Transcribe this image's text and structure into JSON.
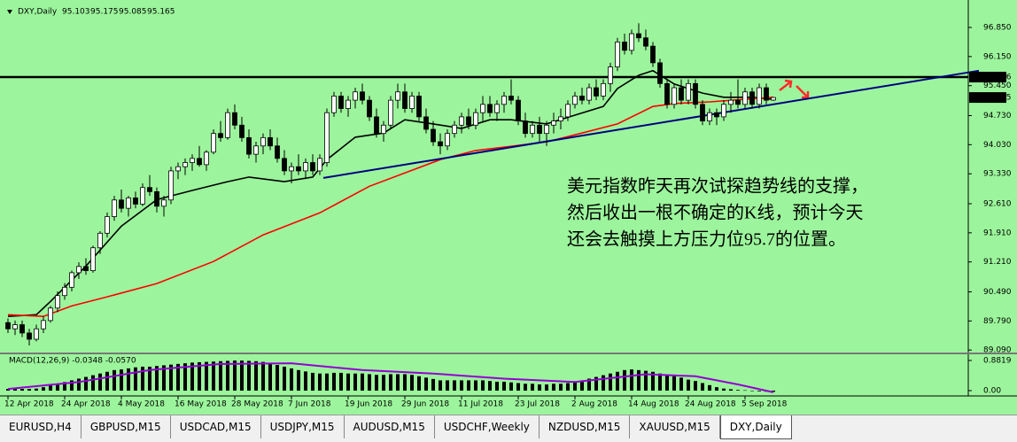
{
  "chart_data": {
    "type": "candlestick",
    "title": "DXY,Daily",
    "xlim": [
      -0.5,
      135.5
    ],
    "ylim": [
      89.03,
      97.34
    ],
    "yticks": [
      {
        "value": 96.85,
        "label": "96.850"
      },
      {
        "value": 96.15,
        "label": "96.150"
      },
      {
        "value": 95.45,
        "label": "95.450"
      },
      {
        "value": 94.73,
        "label": "94.730"
      },
      {
        "value": 94.03,
        "label": "94.030"
      },
      {
        "value": 93.33,
        "label": "93.330"
      },
      {
        "value": 92.61,
        "label": "92.610"
      },
      {
        "value": 91.91,
        "label": "91.910"
      },
      {
        "value": 91.21,
        "label": "91.210"
      },
      {
        "value": 90.49,
        "label": "90.490"
      },
      {
        "value": 89.79,
        "label": "89.790"
      },
      {
        "value": 89.09,
        "label": "89.090"
      }
    ],
    "categories": [
      "12 Apr 2018",
      null,
      null,
      null,
      null,
      null,
      null,
      null,
      "24 Apr 2018",
      null,
      null,
      null,
      null,
      null,
      null,
      null,
      "4 May 2018",
      null,
      null,
      null,
      null,
      null,
      null,
      null,
      "16 May 2018",
      null,
      null,
      null,
      null,
      null,
      null,
      null,
      "28 May 2018",
      null,
      null,
      null,
      null,
      null,
      null,
      null,
      "7 Jun 2018",
      null,
      null,
      null,
      null,
      null,
      null,
      null,
      "19 Jun 2018",
      null,
      null,
      null,
      null,
      null,
      null,
      null,
      "29 Jun 2018",
      null,
      null,
      null,
      null,
      null,
      null,
      null,
      "11 Jul 2018",
      null,
      null,
      null,
      null,
      null,
      null,
      null,
      "23 Jul 2018",
      null,
      null,
      null,
      null,
      null,
      null,
      null,
      "2 Aug 2018",
      null,
      null,
      null,
      null,
      null,
      null,
      null,
      "14 Aug 2018",
      null,
      null,
      null,
      null,
      null,
      null,
      null,
      "24 Aug 2018",
      null,
      null,
      null,
      null,
      null,
      null,
      null,
      "5 Sep 2018",
      null,
      null,
      null,
      null
    ],
    "up_color": "#ffffff",
    "down_color": "#000000",
    "candles": [
      [
        89.75,
        89.85,
        89.5,
        89.6
      ],
      [
        89.6,
        89.8,
        89.45,
        89.7
      ],
      [
        89.7,
        89.8,
        89.4,
        89.5
      ],
      [
        89.5,
        89.6,
        89.2,
        89.35
      ],
      [
        89.35,
        89.7,
        89.3,
        89.6
      ],
      [
        89.6,
        89.9,
        89.5,
        89.8
      ],
      [
        89.8,
        90.15,
        89.75,
        90.1
      ],
      [
        90.1,
        90.5,
        90.0,
        90.4
      ],
      [
        90.4,
        90.7,
        90.3,
        90.6
      ],
      [
        90.6,
        91.0,
        90.5,
        90.95
      ],
      [
        90.95,
        91.2,
        90.8,
        91.1
      ],
      [
        91.1,
        91.3,
        90.9,
        91.0
      ],
      [
        91.0,
        91.6,
        90.95,
        91.55
      ],
      [
        91.55,
        91.95,
        91.4,
        91.9
      ],
      [
        91.9,
        92.4,
        91.8,
        92.3
      ],
      [
        92.3,
        92.8,
        92.2,
        92.7
      ],
      [
        92.7,
        92.95,
        92.4,
        92.5
      ],
      [
        92.5,
        92.8,
        92.3,
        92.75
      ],
      [
        92.75,
        92.9,
        92.5,
        92.6
      ],
      [
        92.6,
        93.1,
        92.55,
        93.0
      ],
      [
        93.0,
        93.3,
        92.8,
        92.9
      ],
      [
        92.9,
        93.0,
        92.4,
        92.55
      ],
      [
        92.55,
        92.8,
        92.3,
        92.7
      ],
      [
        92.7,
        93.5,
        92.6,
        93.4
      ],
      [
        93.4,
        93.6,
        93.2,
        93.5
      ],
      [
        93.5,
        93.7,
        93.3,
        93.6
      ],
      [
        93.6,
        93.8,
        93.4,
        93.7
      ],
      [
        93.7,
        94.0,
        93.5,
        93.55
      ],
      [
        93.55,
        93.9,
        93.4,
        93.85
      ],
      [
        93.85,
        94.4,
        93.8,
        94.3
      ],
      [
        94.3,
        94.6,
        94.1,
        94.2
      ],
      [
        94.2,
        94.9,
        94.15,
        94.8
      ],
      [
        94.8,
        95.0,
        94.4,
        94.5
      ],
      [
        94.5,
        94.7,
        94.1,
        94.2
      ],
      [
        94.2,
        94.4,
        93.7,
        93.8
      ],
      [
        93.8,
        94.1,
        93.6,
        94.0
      ],
      [
        94.0,
        94.3,
        93.8,
        94.2
      ],
      [
        94.2,
        94.4,
        93.9,
        94.0
      ],
      [
        94.0,
        94.2,
        93.6,
        93.7
      ],
      [
        93.7,
        93.9,
        93.3,
        93.4
      ],
      [
        93.4,
        93.6,
        93.1,
        93.5
      ],
      [
        93.5,
        93.8,
        93.3,
        93.4
      ],
      [
        93.4,
        93.7,
        93.2,
        93.6
      ],
      [
        93.6,
        93.8,
        93.3,
        93.4
      ],
      [
        93.4,
        93.8,
        93.3,
        93.7
      ],
      [
        93.6,
        94.9,
        93.5,
        94.8
      ],
      [
        94.8,
        95.3,
        94.7,
        95.2
      ],
      [
        95.2,
        95.3,
        94.8,
        94.9
      ],
      [
        94.9,
        95.2,
        94.7,
        95.1
      ],
      [
        95.1,
        95.4,
        94.9,
        95.3
      ],
      [
        95.3,
        95.5,
        95.0,
        95.1
      ],
      [
        95.1,
        95.2,
        94.6,
        94.7
      ],
      [
        94.7,
        94.9,
        94.2,
        94.3
      ],
      [
        94.3,
        94.6,
        94.1,
        94.5
      ],
      [
        94.5,
        95.2,
        94.4,
        95.1
      ],
      [
        95.1,
        95.5,
        94.9,
        95.3
      ],
      [
        95.3,
        95.5,
        94.8,
        94.9
      ],
      [
        94.9,
        95.3,
        94.8,
        95.2
      ],
      [
        95.2,
        95.3,
        94.6,
        94.7
      ],
      [
        94.7,
        94.9,
        94.3,
        94.4
      ],
      [
        94.4,
        94.6,
        94.0,
        94.1
      ],
      [
        94.1,
        94.3,
        93.8,
        94.0
      ],
      [
        94.0,
        94.4,
        93.9,
        94.3
      ],
      [
        94.3,
        94.6,
        94.2,
        94.5
      ],
      [
        94.5,
        94.8,
        94.3,
        94.7
      ],
      [
        94.7,
        94.9,
        94.4,
        94.5
      ],
      [
        94.5,
        94.9,
        94.4,
        94.8
      ],
      [
        94.8,
        95.2,
        94.6,
        95.0
      ],
      [
        95.0,
        95.2,
        94.7,
        94.8
      ],
      [
        94.8,
        95.1,
        94.6,
        95.0
      ],
      [
        95.0,
        95.3,
        94.8,
        95.2
      ],
      [
        95.2,
        95.6,
        95.0,
        95.1
      ],
      [
        95.1,
        95.2,
        94.5,
        94.6
      ],
      [
        94.6,
        94.8,
        94.2,
        94.3
      ],
      [
        94.3,
        94.6,
        94.2,
        94.5
      ],
      [
        94.5,
        94.7,
        94.1,
        94.3
      ],
      [
        94.3,
        94.6,
        94.0,
        94.5
      ],
      [
        94.5,
        94.8,
        94.3,
        94.6
      ],
      [
        94.6,
        94.9,
        94.4,
        94.7
      ],
      [
        94.7,
        95.1,
        94.6,
        95.0
      ],
      [
        95.0,
        95.3,
        94.9,
        95.2
      ],
      [
        95.2,
        95.4,
        95.0,
        95.1
      ],
      [
        95.1,
        95.5,
        95.0,
        95.4
      ],
      [
        95.4,
        95.6,
        95.1,
        95.2
      ],
      [
        95.2,
        95.6,
        95.1,
        95.5
      ],
      [
        95.5,
        96.0,
        95.3,
        95.9
      ],
      [
        95.9,
        96.6,
        95.8,
        96.5
      ],
      [
        96.5,
        96.7,
        96.2,
        96.3
      ],
      [
        96.3,
        96.8,
        96.2,
        96.7
      ],
      [
        96.7,
        96.95,
        96.5,
        96.6
      ],
      [
        96.6,
        96.8,
        96.3,
        96.4
      ],
      [
        96.4,
        96.5,
        95.9,
        96.0
      ],
      [
        96.0,
        96.1,
        95.4,
        95.5
      ],
      [
        95.5,
        95.6,
        94.9,
        95.0
      ],
      [
        95.0,
        95.5,
        94.9,
        95.4
      ],
      [
        95.4,
        95.6,
        95.0,
        95.1
      ],
      [
        95.1,
        95.6,
        95.0,
        95.5
      ],
      [
        95.5,
        95.6,
        94.9,
        95.0
      ],
      [
        95.0,
        95.1,
        94.5,
        94.6
      ],
      [
        94.6,
        94.9,
        94.5,
        94.8
      ],
      [
        94.8,
        94.9,
        94.5,
        94.7
      ],
      [
        94.7,
        95.1,
        94.6,
        95.0
      ],
      [
        95.0,
        95.3,
        94.8,
        95.1
      ],
      [
        95.1,
        95.6,
        94.9,
        95.0
      ],
      [
        95.0,
        95.4,
        94.9,
        95.3
      ],
      [
        95.3,
        95.4,
        94.9,
        95.0
      ],
      [
        95.0,
        95.5,
        94.9,
        95.4
      ],
      [
        95.4,
        95.5,
        95.0,
        95.1
      ],
      [
        95.103,
        95.175,
        95.085,
        95.165
      ]
    ],
    "overlays": [
      {
        "color": "#000000",
        "x": [
          0,
          4,
          6,
          11,
          16,
          21,
          26,
          31,
          34,
          39,
          43,
          45,
          49,
          53,
          56,
          60,
          64,
          68,
          71,
          76,
          80,
          84,
          86,
          89,
          91,
          94,
          98,
          101,
          105,
          108
        ],
        "values": [
          89.9,
          89.94,
          90.26,
          91.11,
          92.07,
          92.71,
          92.93,
          93.14,
          93.25,
          93.14,
          93.25,
          93.67,
          94.21,
          94.31,
          94.63,
          94.53,
          94.42,
          94.63,
          94.63,
          94.53,
          94.74,
          94.95,
          95.38,
          95.7,
          95.81,
          95.49,
          95.27,
          95.17,
          95.17,
          95.12
        ]
      },
      {
        "color": "#ff0000",
        "x": [
          0,
          5,
          9,
          14,
          21,
          29,
          36,
          44,
          51,
          56,
          61,
          66,
          71,
          76,
          81,
          86,
          91,
          94,
          99,
          108
        ],
        "values": [
          89.94,
          89.9,
          90.15,
          90.37,
          90.69,
          91.22,
          91.86,
          92.39,
          93.03,
          93.35,
          93.67,
          93.89,
          93.99,
          94.1,
          94.31,
          94.53,
          94.95,
          95.02,
          95.06,
          95.17
        ]
      }
    ],
    "trendline": {
      "color": "#000080",
      "x": [
        44.5,
        137
      ],
      "values": [
        93.23,
        95.81
      ]
    },
    "hline": {
      "value": 95.656,
      "label": "95.656"
    },
    "price_label": {
      "value": 95.165,
      "label": "95.165"
    },
    "annotation": [
      "美元指数昨天再次试探趋势线的支撑，",
      "然后收出一根不确定的K线，预计今天",
      "还会去触摸上方压力位95.7的位置。"
    ],
    "macd": {
      "type": "bar",
      "title": "MACD(12,26,9) -0.0348 -0.0570",
      "color": "#000000",
      "ylim": [
        -0.13,
        1.01
      ],
      "yticks": [
        0.8819,
        {
          "value": 0,
          "label": "0.00"
        }
      ],
      "values": [
        0.05,
        0.06,
        0.05,
        0.05,
        0.06,
        0.1,
        0.15,
        0.2,
        0.25,
        0.3,
        0.35,
        0.4,
        0.45,
        0.5,
        0.55,
        0.6,
        0.62,
        0.65,
        0.68,
        0.7,
        0.7,
        0.72,
        0.74,
        0.76,
        0.78,
        0.8,
        0.82,
        0.83,
        0.84,
        0.85,
        0.86,
        0.87,
        0.88,
        0.88,
        0.87,
        0.86,
        0.84,
        0.8,
        0.75,
        0.7,
        0.65,
        0.6,
        0.56,
        0.52,
        0.5,
        0.5,
        0.52,
        0.52,
        0.5,
        0.5,
        0.5,
        0.48,
        0.46,
        0.46,
        0.48,
        0.48,
        0.48,
        0.46,
        0.42,
        0.38,
        0.34,
        0.3,
        0.3,
        0.3,
        0.3,
        0.3,
        0.3,
        0.3,
        0.28,
        0.26,
        0.26,
        0.24,
        0.22,
        0.2,
        0.2,
        0.18,
        0.18,
        0.2,
        0.2,
        0.22,
        0.25,
        0.3,
        0.35,
        0.4,
        0.45,
        0.5,
        0.55,
        0.6,
        0.62,
        0.6,
        0.58,
        0.55,
        0.5,
        0.45,
        0.42,
        0.38,
        0.32,
        0.28,
        0.22,
        0.16,
        0.1,
        0.06,
        0.04,
        0.02,
        0.01,
        -0.01,
        -0.02,
        -0.03,
        -0.035
      ],
      "signal": {
        "color": "#9400d3",
        "x": [
          0,
          10,
          20,
          30,
          40,
          50,
          60,
          70,
          80,
          90,
          97,
          103,
          108
        ],
        "values": [
          0.05,
          0.25,
          0.6,
          0.78,
          0.8,
          0.6,
          0.5,
          0.35,
          0.25,
          0.48,
          0.42,
          0.18,
          -0.05
        ]
      }
    },
    "tabs": [
      "EURUSD,H4",
      "GBPUSD,M15",
      "USDCAD,M15",
      "USDJPY,M15",
      "AUDUSD,M15",
      "USDCHF,Weekly",
      "NZDUSD,M15",
      "XAUUSD,M15",
      "DXY,Daily"
    ]
  }
}
